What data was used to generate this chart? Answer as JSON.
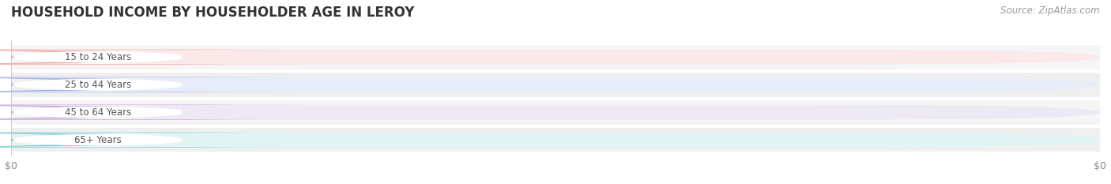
{
  "title": "HOUSEHOLD INCOME BY HOUSEHOLDER AGE IN LEROY",
  "source": "Source: ZipAtlas.com",
  "categories": [
    "15 to 24 Years",
    "25 to 44 Years",
    "45 to 64 Years",
    "65+ Years"
  ],
  "values": [
    0,
    0,
    0,
    0
  ],
  "bar_colors": [
    "#f4a0a0",
    "#a0b4e8",
    "#c4a0d8",
    "#78cdd0"
  ],
  "bar_bg_colors": [
    "#fce8e8",
    "#e8ecf8",
    "#ece8f4",
    "#e0f4f4"
  ],
  "row_bg_colors": [
    "#f5f5f5",
    "#efefef",
    "#f5f5f5",
    "#efefef"
  ],
  "label_text_color": "#555555",
  "title_color": "#333333",
  "source_color": "#999999",
  "xlabel_ticks": [
    "$0",
    "$0"
  ],
  "xlim": [
    0,
    1
  ],
  "figsize": [
    14.06,
    2.33
  ],
  "dpi": 100
}
